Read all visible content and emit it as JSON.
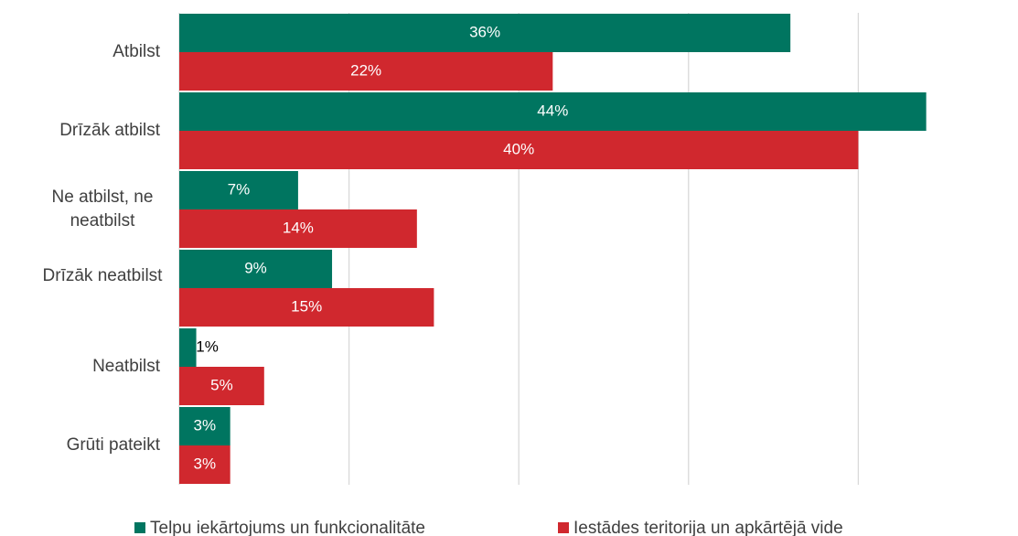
{
  "chart_data": {
    "type": "hbar",
    "categories": [
      "Atbilst",
      "Drīzāk atbilst",
      "Ne atbilst, ne neatbilst",
      "Drīzāk neatbilst",
      "Neatbilst",
      "Grūti pateikt"
    ],
    "series": [
      {
        "name": "Telpu iekārtojums un funkcionalitāte",
        "color": "#007560",
        "values": [
          36,
          44,
          7,
          9,
          1,
          3
        ],
        "value_labels": [
          "36%",
          "44%",
          "7%",
          "9%",
          "1%",
          "3%"
        ]
      },
      {
        "name": "Iestādes teritorija un apkārtējā vide",
        "color": "#d0282e",
        "values": [
          22,
          40,
          14,
          15,
          5,
          3
        ],
        "value_labels": [
          "22%",
          "40%",
          "14%",
          "15%",
          "5%",
          "3%"
        ]
      }
    ],
    "xlim": [
      0,
      45
    ],
    "xticks": [
      0,
      10,
      20,
      30,
      40
    ],
    "grid": true,
    "legend": "bottom"
  }
}
